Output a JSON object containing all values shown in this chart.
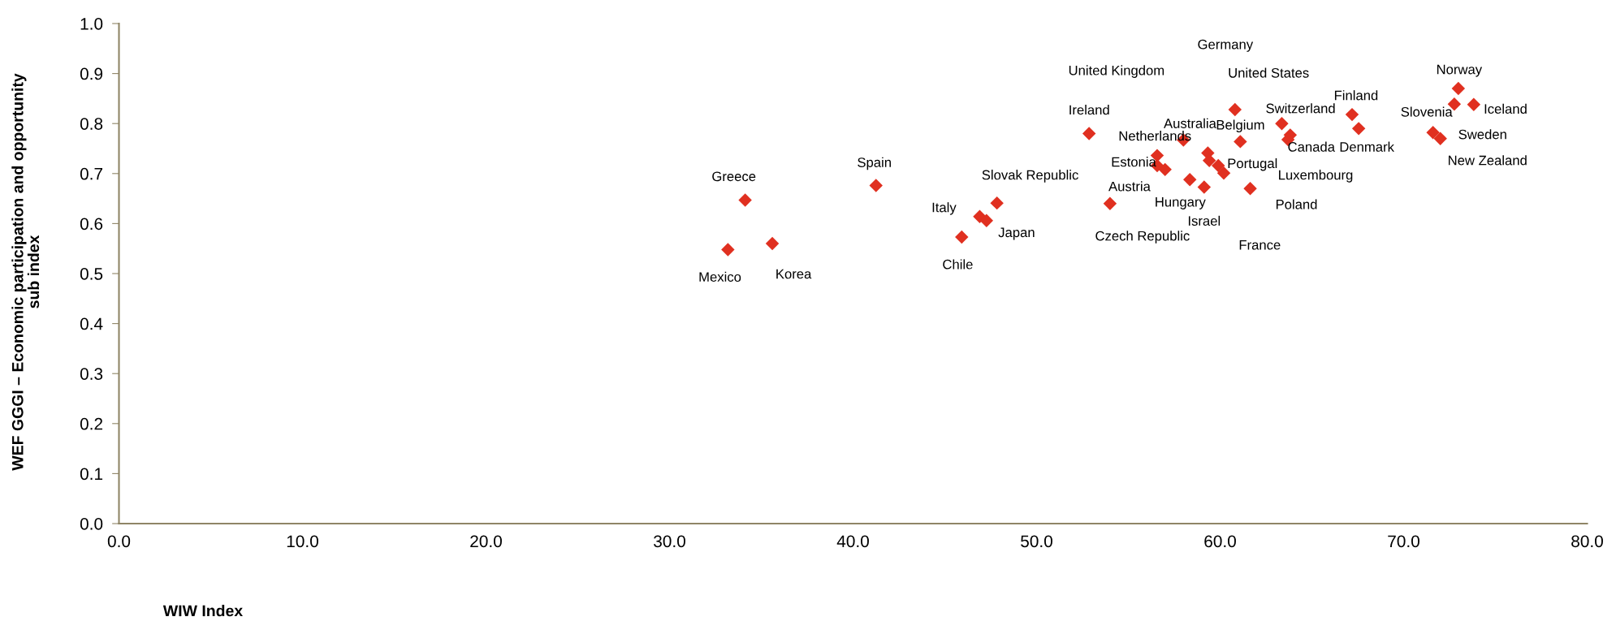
{
  "chart_data": {
    "type": "scatter",
    "xlabel": "WIW Index",
    "ylabel": "WEF GGGI – Economic participation and opportunity\nsub index",
    "x": [
      33.18,
      34.12,
      35.6,
      41.25,
      45.92,
      46.9,
      47.27,
      47.84,
      52.86,
      54.0,
      56.57,
      56.57,
      57.0,
      58.0,
      59.33,
      59.41,
      59.9,
      60.2,
      58.35,
      59.13,
      61.64,
      60.81,
      61.1,
      63.36,
      63.82,
      63.7,
      67.19,
      67.55,
      72.98,
      73.82,
      71.6,
      72.0,
      72.76
    ],
    "series": [
      {
        "color": "#e03020",
        "values": [
          0.548,
          0.647,
          0.56,
          0.676,
          0.573,
          0.614,
          0.606,
          0.641,
          0.78,
          0.64,
          0.736,
          0.716,
          0.708,
          0.767,
          0.741,
          0.726,
          0.716,
          0.701,
          0.688,
          0.673,
          0.67,
          0.828,
          0.764,
          0.8,
          0.777,
          0.768,
          0.818,
          0.79,
          0.87,
          0.838,
          0.782,
          0.77,
          0.839
        ]
      }
    ],
    "marker": "diamond",
    "annotations": [
      "Mexico",
      "Greece",
      "Korea",
      "Spain",
      "Chile",
      "Italy",
      "Japan",
      "Slovak Republic",
      "Ireland",
      "Austria",
      "Estonia",
      "Czech Republic",
      "United Kingdom",
      "Netherlands",
      "Australia",
      "Portugal",
      "France",
      "Luxembourg",
      "Hungary",
      "Israel",
      "Poland",
      "Germany",
      "Belgium",
      "Switzerland",
      "Canada",
      "United States",
      "Finland",
      "Denmark",
      "Norway",
      "Iceland",
      "Slovenia",
      "Sweden",
      "New Zealand"
    ],
    "xlim": [
      0,
      80
    ],
    "xticks": [
      {
        "value": 0,
        "label": "0.0"
      },
      {
        "value": 10,
        "label": "10.0"
      },
      {
        "value": 20,
        "label": "20.0"
      },
      {
        "value": 30,
        "label": "30.0"
      },
      {
        "value": 40,
        "label": "40.0"
      },
      {
        "value": 50,
        "label": "50.0"
      },
      {
        "value": 60,
        "label": "60.0"
      },
      {
        "value": 70,
        "label": "70.0"
      },
      {
        "value": 80,
        "label": "80.0"
      }
    ],
    "ylim": [
      0,
      1
    ],
    "yticks": [
      {
        "value": 0,
        "label": "0.0"
      },
      {
        "value": 0.1,
        "label": "0.1"
      },
      {
        "value": 0.2,
        "label": "0.2"
      },
      {
        "value": 0.3,
        "label": "0.3"
      },
      {
        "value": 0.4,
        "label": "0.4"
      },
      {
        "value": 0.5,
        "label": "0.5"
      },
      {
        "value": 0.6,
        "label": "0.6"
      },
      {
        "value": 0.7,
        "label": "0.7"
      },
      {
        "value": 0.8,
        "label": "0.8"
      },
      {
        "value": 0.9,
        "label": "0.9"
      },
      {
        "value": 1.0,
        "label": "1.0"
      }
    ],
    "grid": false
  }
}
